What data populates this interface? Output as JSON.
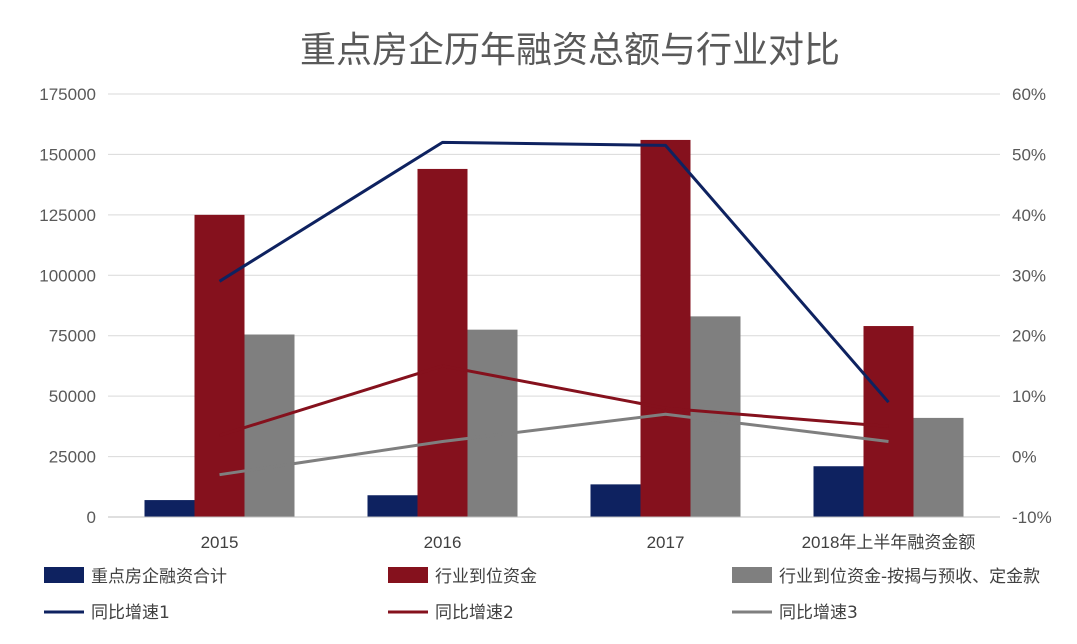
{
  "chart_data": {
    "type": "bar",
    "title": "重点房企历年融资总额与行业对比",
    "categories": [
      "2015",
      "2016",
      "2017",
      "2018年上半年融资金额"
    ],
    "bar_series": [
      {
        "name": "重点房企融资合计",
        "color": "#0e2260",
        "values": [
          7000,
          9000,
          13500,
          21000
        ]
      },
      {
        "name": "行业到位资金",
        "color": "#85111d",
        "values": [
          125000,
          144000,
          156000,
          79000
        ]
      },
      {
        "name": "行业到位资金-按揭与预收、定金款",
        "color": "#7f7f7f",
        "values": [
          75500,
          77500,
          83000,
          41000
        ]
      }
    ],
    "line_series": [
      {
        "name": "同比增速1",
        "color": "#0e2260",
        "values": [
          0.29,
          0.52,
          0.515,
          0.09
        ]
      },
      {
        "name": "同比增速2",
        "color": "#85111d",
        "values": [
          0.035,
          0.15,
          0.08,
          0.05
        ]
      },
      {
        "name": "同比增速3",
        "color": "#7f7f7f",
        "values": [
          -0.03,
          0.025,
          0.07,
          0.025
        ]
      }
    ],
    "y_left": {
      "min": 0,
      "max": 175000,
      "step": 25000,
      "tick_labels": [
        "0",
        "25000",
        "50000",
        "75000",
        "100000",
        "125000",
        "150000",
        "175000"
      ]
    },
    "y_right": {
      "min": -0.1,
      "max": 0.6,
      "step": 0.1,
      "tick_labels": [
        "-10%",
        "0%",
        "10%",
        "20%",
        "30%",
        "40%",
        "50%",
        "60%"
      ]
    },
    "grid": true,
    "legend_position": "bottom"
  }
}
